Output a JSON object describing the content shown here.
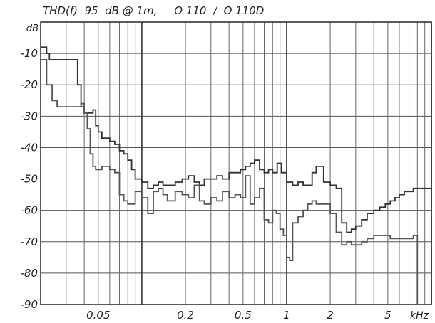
{
  "chart_data": {
    "type": "line",
    "title": "THD(f)  95  dB @ 1m,     O 110  /  O 110D",
    "ylabel": "dB",
    "xlabel": "kHz",
    "x_scale": "log",
    "x_unit": "kHz",
    "xlim": [
      0.02,
      10
    ],
    "ylim": [
      -90,
      0
    ],
    "grid": true,
    "x_tick_labels": [
      {
        "value": 0.05,
        "label": "0.05"
      },
      {
        "value": 0.2,
        "label": "0.2"
      },
      {
        "value": 0.5,
        "label": "0.5"
      },
      {
        "value": 1,
        "label": "1"
      },
      {
        "value": 2,
        "label": "2"
      },
      {
        "value": 5,
        "label": "5"
      }
    ],
    "y_tick_labels": [
      {
        "value": -10,
        "label": "-10"
      },
      {
        "value": -20,
        "label": "-20"
      },
      {
        "value": -30,
        "label": "-30"
      },
      {
        "value": -40,
        "label": "-40"
      },
      {
        "value": -50,
        "label": "-50"
      },
      {
        "value": -60,
        "label": "-60"
      },
      {
        "value": -70,
        "label": "-70"
      },
      {
        "value": -80,
        "label": "-80"
      },
      {
        "value": -90,
        "label": "-90"
      }
    ],
    "series": [
      {
        "color": "#333333",
        "x": [
          0.02,
          0.022,
          0.023,
          0.024,
          0.025,
          0.026,
          0.027,
          0.028,
          0.03,
          0.032,
          0.034,
          0.036,
          0.038,
          0.04,
          0.042,
          0.044,
          0.046,
          0.048,
          0.05,
          0.053,
          0.056,
          0.06,
          0.065,
          0.07,
          0.075,
          0.08,
          0.085,
          0.09,
          0.095,
          0.1,
          0.11,
          0.12,
          0.13,
          0.14,
          0.15,
          0.17,
          0.19,
          0.21,
          0.23,
          0.25,
          0.27,
          0.3,
          0.33,
          0.36,
          0.4,
          0.44,
          0.48,
          0.52,
          0.56,
          0.6,
          0.65,
          0.7,
          0.75,
          0.8,
          0.86,
          0.92,
          1.0,
          1.1,
          1.2,
          1.3,
          1.4,
          1.5,
          1.6,
          1.8,
          2.0,
          2.2,
          2.4,
          2.6,
          2.8,
          3.0,
          3.3,
          3.6,
          4.0,
          4.4,
          4.8,
          5.2,
          5.6,
          6.0,
          6.5,
          7.0,
          7.5,
          8.0,
          8.5,
          9.0,
          10.0
        ],
        "y": [
          -8,
          -10,
          -12,
          -12,
          -12,
          -12,
          -12,
          -12,
          -12,
          -12,
          -12,
          -20,
          -27,
          -29,
          -29,
          -29,
          -28,
          -33,
          -35,
          -37,
          -37,
          -38,
          -39,
          -41,
          -42,
          -44,
          -47,
          -50,
          -50,
          -51,
          -53,
          -52,
          -51,
          -52,
          -52,
          -51,
          -50,
          -49,
          -51,
          -52,
          -50,
          -50,
          -49,
          -50,
          -48,
          -48,
          -47,
          -46,
          -45,
          -44,
          -47,
          -48,
          -47,
          -48,
          -45,
          -48,
          -51,
          -52,
          -51,
          -52,
          -52,
          -48,
          -46,
          -51,
          -52,
          -53,
          -64,
          -67,
          -66,
          -65,
          -63,
          -61,
          -60,
          -59,
          -58,
          -57,
          -56,
          -55,
          -54,
          -54,
          -53,
          -53,
          -53,
          -53,
          -54
        ]
      },
      {
        "color": "#555555",
        "x": [
          0.02,
          0.022,
          0.024,
          0.026,
          0.028,
          0.03,
          0.032,
          0.034,
          0.036,
          0.038,
          0.04,
          0.042,
          0.044,
          0.046,
          0.048,
          0.05,
          0.053,
          0.056,
          0.06,
          0.065,
          0.07,
          0.075,
          0.08,
          0.09,
          0.1,
          0.11,
          0.12,
          0.13,
          0.14,
          0.15,
          0.17,
          0.19,
          0.21,
          0.23,
          0.25,
          0.27,
          0.3,
          0.33,
          0.36,
          0.4,
          0.44,
          0.48,
          0.52,
          0.56,
          0.6,
          0.65,
          0.7,
          0.75,
          0.8,
          0.85,
          0.9,
          0.95,
          1.0,
          1.05,
          1.1,
          1.2,
          1.3,
          1.4,
          1.5,
          1.6,
          1.8,
          2.0,
          2.2,
          2.4,
          2.6,
          2.8,
          3.0,
          3.3,
          3.6,
          4.0,
          4.4,
          4.8,
          5.2,
          5.6,
          6.0,
          6.5,
          7.0,
          7.5,
          8.0
        ],
        "y": [
          -12,
          -20,
          -25,
          -27,
          -27,
          -27,
          -27,
          -27,
          -27,
          -26,
          -29,
          -34,
          -42,
          -46,
          -47,
          -47,
          -46,
          -46,
          -47,
          -48,
          -55,
          -57,
          -58,
          -54,
          -56,
          -61,
          -54,
          -53,
          -55,
          -57,
          -54,
          -55,
          -56,
          -52,
          -57,
          -58,
          -56,
          -57,
          -54,
          -56,
          -55,
          -56,
          -49,
          -58,
          -56,
          -53,
          -63,
          -64,
          -60,
          -61,
          -66,
          -68,
          -75,
          -76,
          -64,
          -62,
          -60,
          -58,
          -57,
          -58,
          -58,
          -61,
          -67,
          -71,
          -70,
          -71,
          -71,
          -70,
          -69,
          -68,
          -68,
          -68,
          -69,
          -69,
          -69,
          -69,
          -69,
          -68,
          -90
        ]
      }
    ]
  }
}
